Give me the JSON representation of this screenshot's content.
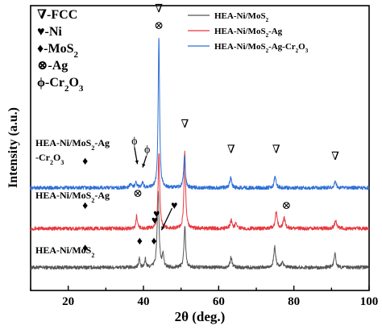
{
  "chart_data": {
    "type": "line",
    "xlabel": "2θ (deg.)",
    "ylabel": "Intensity (a.u.)",
    "xlim": [
      10,
      100
    ],
    "x_ticks": [
      20,
      40,
      60,
      80,
      100
    ],
    "grid": false,
    "legend_position": "top-right",
    "series": [
      {
        "name": "HEA-Ni/MoS2",
        "legend_label": [
          "HEA-Ni/MoS",
          "2",
          ""
        ],
        "curve_label": [
          "HEA-Ni/MoS",
          "2",
          ""
        ],
        "color": "#555555",
        "baseline": 0.05,
        "peaks": [
          [
            38.9,
            0.06,
            0.18
          ],
          [
            40.5,
            0.05,
            0.2
          ],
          [
            43.9,
            0.46,
            0.28
          ],
          [
            45.2,
            0.08,
            0.2
          ],
          [
            51.0,
            0.25,
            0.25
          ],
          [
            63.3,
            0.06,
            0.3
          ],
          [
            74.9,
            0.12,
            0.3
          ],
          [
            76.9,
            0.03,
            0.3
          ],
          [
            90.9,
            0.08,
            0.3
          ]
        ]
      },
      {
        "name": "HEA-Ni/MoS2-Ag",
        "legend_label": [
          "HEA-Ni/MoS",
          "2",
          "-Ag"
        ],
        "curve_label": [
          "HEA-Ni/MoS",
          "2",
          "-Ag"
        ],
        "color": "#e8383d",
        "baseline": 0.28,
        "peaks": [
          [
            38.2,
            0.08,
            0.2
          ],
          [
            44.1,
            0.45,
            0.25
          ],
          [
            51.0,
            0.45,
            0.25
          ],
          [
            63.3,
            0.05,
            0.3
          ],
          [
            64.6,
            0.03,
            0.3
          ],
          [
            75.3,
            0.1,
            0.3
          ],
          [
            77.4,
            0.06,
            0.35
          ],
          [
            91.1,
            0.05,
            0.3
          ]
        ]
      },
      {
        "name": "HEA-Ni/MoS2-Ag-Cr2O3",
        "legend_label": [
          "HEA-Ni/MoS",
          "2",
          "-Ag-Cr",
          "2",
          "O",
          "3",
          ""
        ],
        "curve_label_lines": [
          [
            "HEA-Ni/MoS",
            "2",
            "-Ag"
          ],
          [
            "-Cr",
            "2",
            "O",
            "3",
            ""
          ]
        ],
        "color": "#2e6fd6",
        "baseline": 0.52,
        "peaks": [
          [
            36.5,
            0.02,
            0.3
          ],
          [
            38.0,
            0.04,
            0.25
          ],
          [
            39.8,
            0.03,
            0.25
          ],
          [
            44.1,
            0.9,
            0.22
          ],
          [
            50.9,
            0.19,
            0.25
          ],
          [
            63.2,
            0.06,
            0.3
          ],
          [
            75.0,
            0.07,
            0.3
          ],
          [
            91.0,
            0.04,
            0.3
          ]
        ]
      }
    ],
    "phase_legend": [
      {
        "symbol": "∇",
        "label": "-FCC"
      },
      {
        "symbol": "♥",
        "label": "-Ni"
      },
      {
        "symbol": "♦",
        "label": "-MoS",
        "sub": "2"
      },
      {
        "symbol": "⊗",
        "label": "-Ag"
      },
      {
        "symbol": "ϕ",
        "label": "-Cr",
        "sub": "2",
        "label2": "O",
        "sub2": "3"
      }
    ],
    "markers": [
      {
        "symbol": "∇",
        "x": 44.1,
        "y": 1.58
      },
      {
        "symbol": "⊗",
        "x": 44.1,
        "y": 1.48
      },
      {
        "symbol": "∇",
        "x": 51.0,
        "y": 0.9
      },
      {
        "symbol": "∇",
        "x": 63.3,
        "y": 0.75
      },
      {
        "symbol": "∇",
        "x": 75.3,
        "y": 0.75
      },
      {
        "symbol": "∇",
        "x": 91.0,
        "y": 0.71
      },
      {
        "symbol": "ϕ",
        "x": 37.6,
        "y": 0.8
      },
      {
        "symbol": "ϕ",
        "x": 41.0,
        "y": 0.75
      },
      {
        "symbol": "♦",
        "x": 24.5,
        "y": 0.68
      },
      {
        "symbol": "⊗",
        "x": 38.5,
        "y": 0.49
      },
      {
        "symbol": "♦",
        "x": 24.5,
        "y": 0.42
      },
      {
        "symbol": "⊗",
        "x": 78.0,
        "y": 0.42
      },
      {
        "symbol": "♦",
        "x": 24.5,
        "y": 0.17
      },
      {
        "symbol": "♦",
        "x": 39.0,
        "y": 0.21
      },
      {
        "symbol": "♦",
        "x": 42.8,
        "y": 0.21
      },
      {
        "symbol": "♥",
        "x": 43.0,
        "y": 0.33
      },
      {
        "symbol": "♥",
        "x": 43.5,
        "y": 0.37
      },
      {
        "symbol": "♥",
        "x": 48.2,
        "y": 0.42
      }
    ],
    "arrows": [
      {
        "from": [
          37.6,
          0.76
        ],
        "to": [
          38.4,
          0.66
        ]
      },
      {
        "from": [
          40.8,
          0.71
        ],
        "to": [
          39.8,
          0.64
        ]
      },
      {
        "from": [
          47.6,
          0.4
        ],
        "to": [
          44.8,
          0.27
        ]
      }
    ]
  }
}
